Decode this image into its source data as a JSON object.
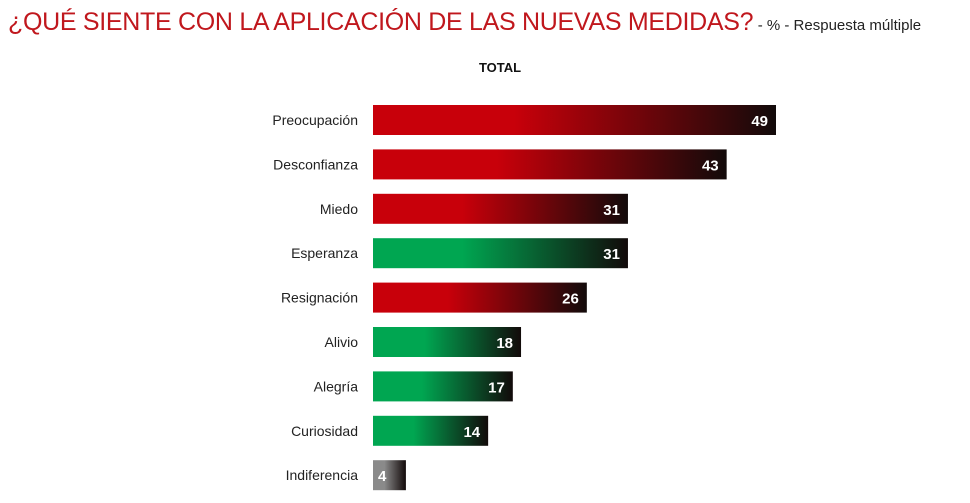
{
  "chart_data": {
    "type": "bar",
    "orientation": "horizontal",
    "title": "¿QUÉ SIENTE CON LA APLICACIÓN DE LAS NUEVAS MEDIDAS?",
    "title_suffix": "- % - Respuesta múltiple",
    "subtitle": "TOTAL",
    "categories": [
      "Preocupación",
      "Desconfianza",
      "Miedo",
      "Esperanza",
      "Resignación",
      "Alivio",
      "Alegría",
      "Curiosidad",
      "Indiferencia"
    ],
    "values": [
      49,
      43,
      31,
      31,
      26,
      18,
      17,
      14,
      4
    ],
    "bar_color_groups": [
      "negative",
      "negative",
      "negative",
      "positive",
      "negative",
      "positive",
      "positive",
      "positive",
      "neutral"
    ],
    "colors": {
      "negative": "#c8000a",
      "positive": "#00a651",
      "neutral": "#8a8a8a",
      "gradient_end": "#120a0a",
      "title": "#c0171d"
    },
    "grid": false
  }
}
